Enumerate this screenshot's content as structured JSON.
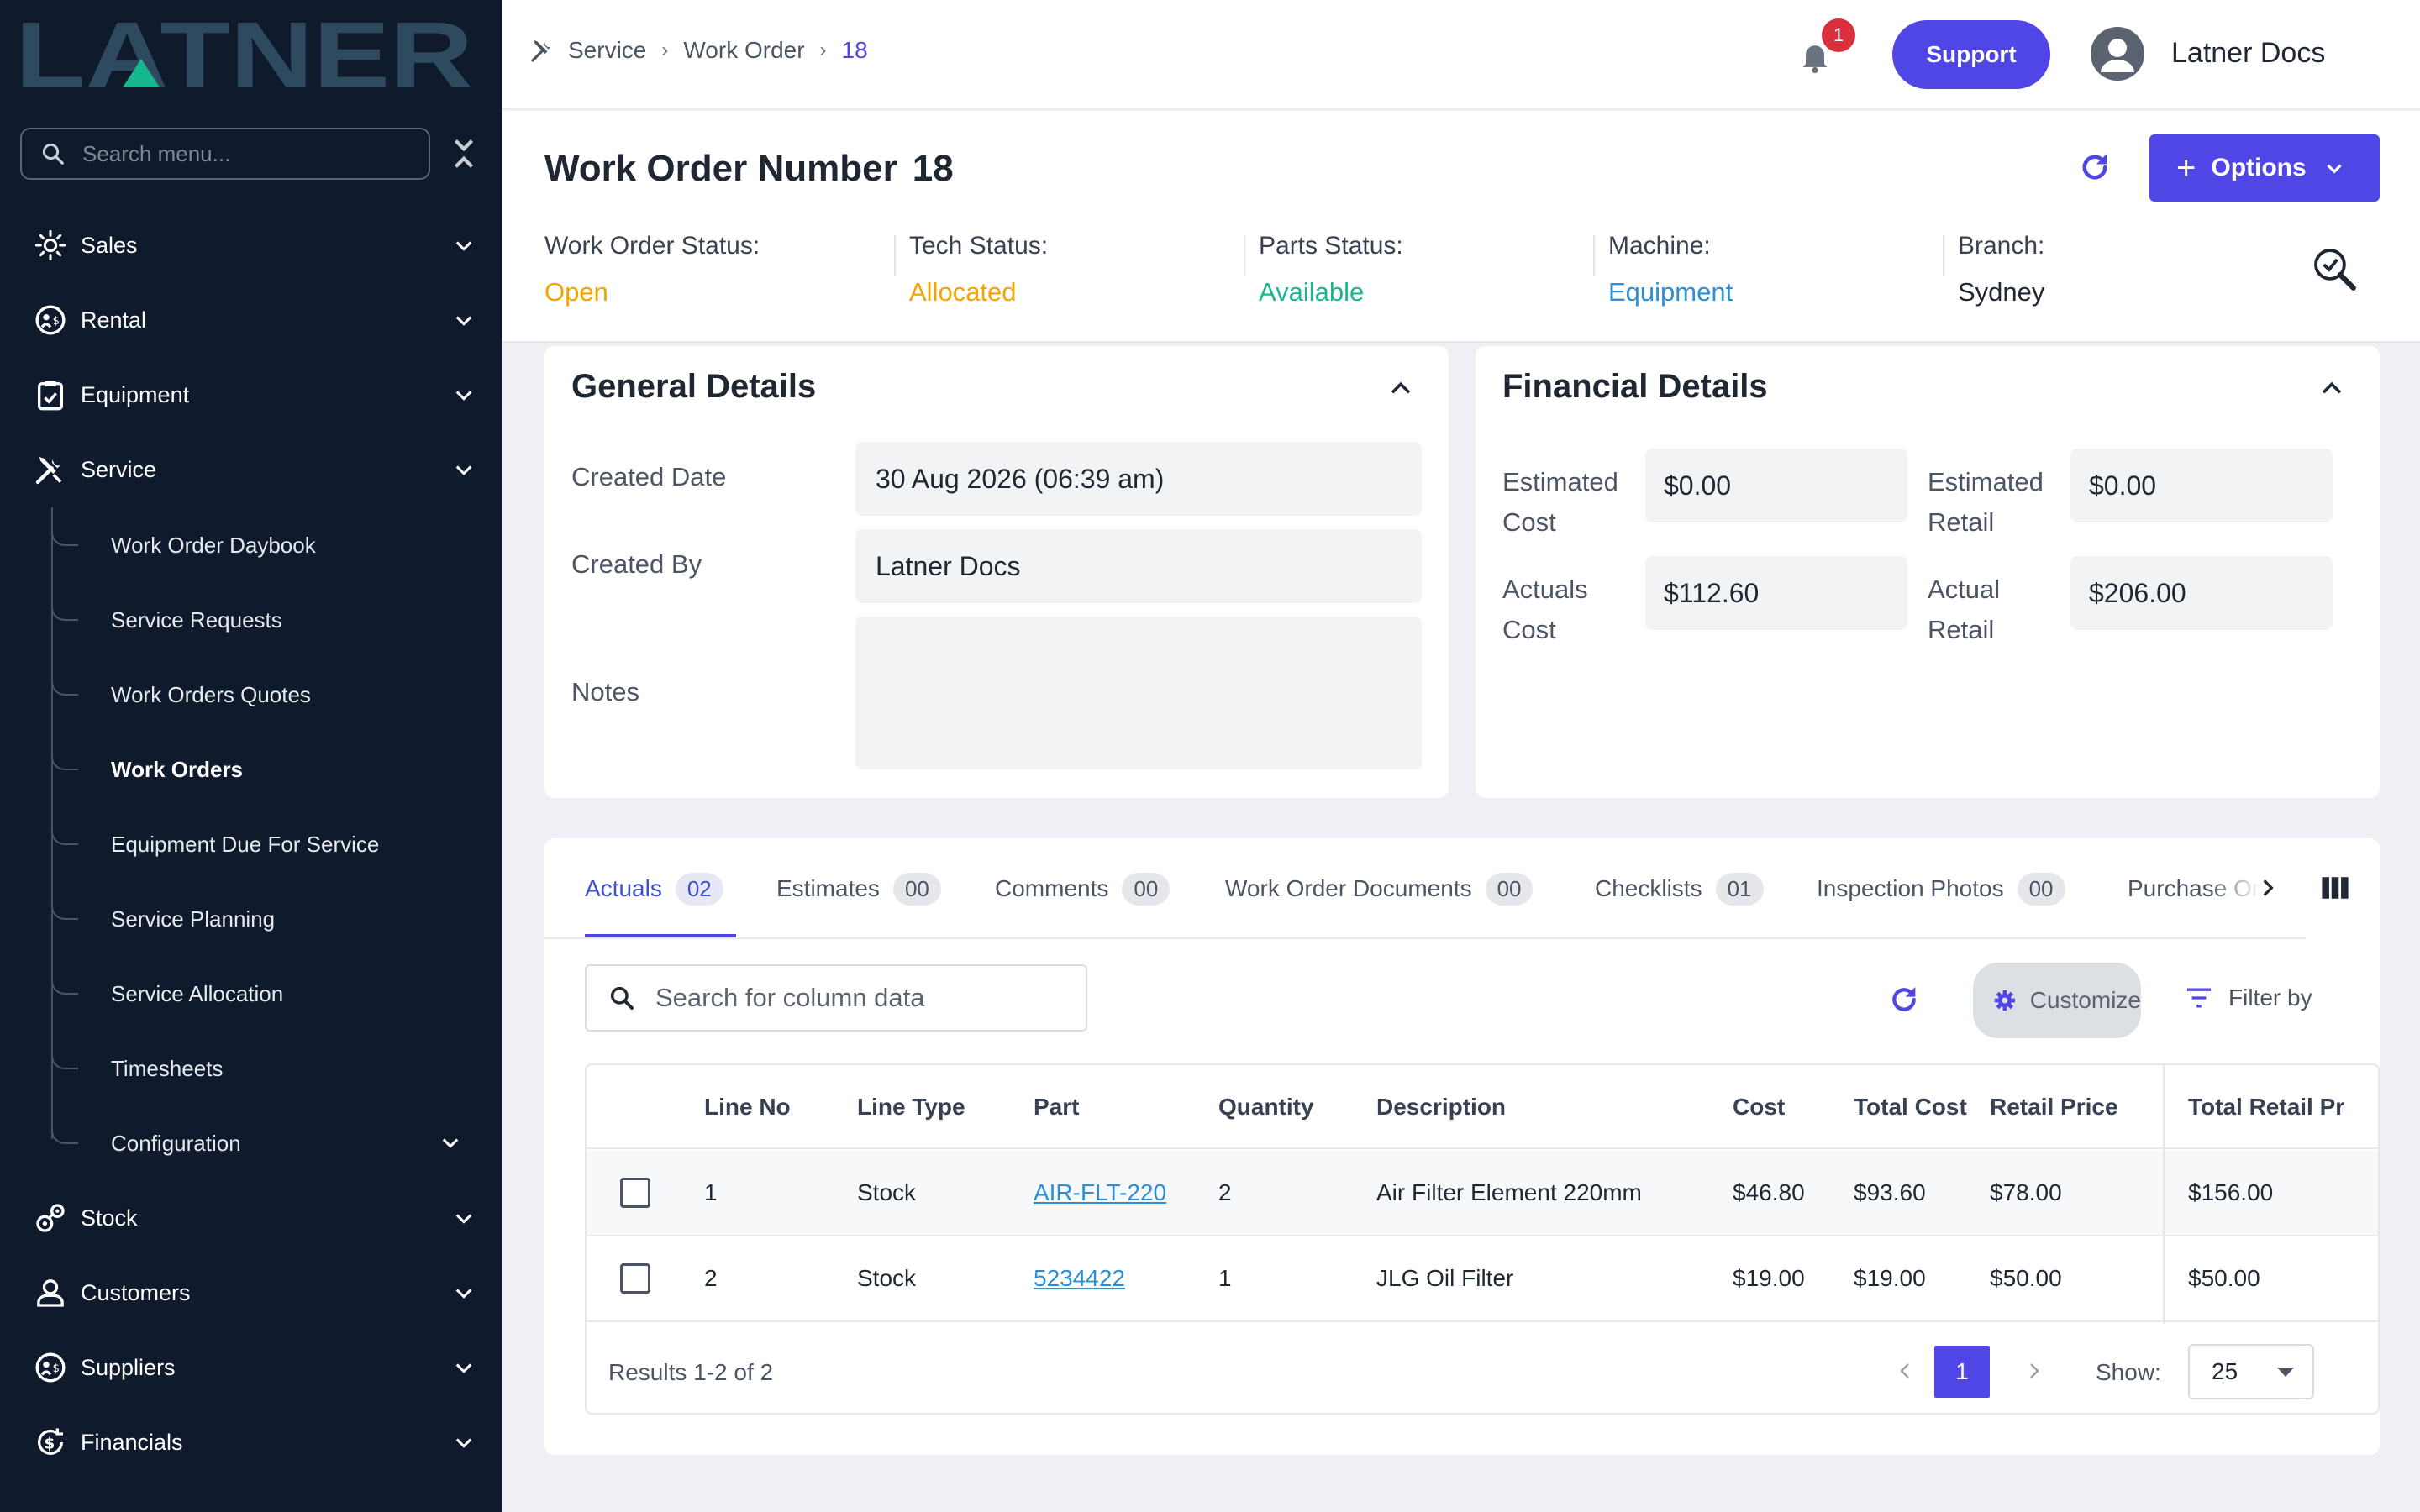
{
  "brand": {
    "logo_text": "LATNER"
  },
  "sidebar": {
    "search_placeholder": "Search menu...",
    "items": [
      {
        "label": "Sales",
        "icon": "sales-icon"
      },
      {
        "label": "Rental",
        "icon": "rental-icon"
      },
      {
        "label": "Equipment",
        "icon": "clipboard-icon"
      },
      {
        "label": "Service",
        "icon": "tools-icon"
      },
      {
        "label": "Stock",
        "icon": "stock-icon"
      },
      {
        "label": "Customers",
        "icon": "user-icon"
      },
      {
        "label": "Suppliers",
        "icon": "suppliers-icon"
      },
      {
        "label": "Financials",
        "icon": "dollar-icon"
      }
    ],
    "service_children": [
      {
        "label": "Work Order Daybook"
      },
      {
        "label": "Service Requests"
      },
      {
        "label": "Work Orders Quotes"
      },
      {
        "label": "Work Orders"
      },
      {
        "label": "Equipment Due For Service"
      },
      {
        "label": "Service Planning"
      },
      {
        "label": "Service Allocation"
      },
      {
        "label": "Timesheets"
      },
      {
        "label": "Configuration"
      }
    ]
  },
  "header": {
    "breadcrumb": [
      "Service",
      "Work Order",
      "18"
    ],
    "notifications_count": "1",
    "support_label": "Support",
    "user_name": "Latner Docs"
  },
  "work_order": {
    "title_label": "Work Order Number",
    "number": "18",
    "options_label": "Options",
    "statuses": [
      {
        "label": "Work Order Status:",
        "value": "Open",
        "color": "#f5a300"
      },
      {
        "label": "Tech Status:",
        "value": "Allocated",
        "color": "#f5a300"
      },
      {
        "label": "Parts Status:",
        "value": "Available",
        "color": "#17b890"
      },
      {
        "label": "Machine:",
        "value": "Equipment",
        "color": "#2a8fd6"
      },
      {
        "label": "Branch:",
        "value": "Sydney",
        "color": "#1f2733"
      }
    ]
  },
  "general_details": {
    "title": "General Details",
    "created_date_label": "Created Date",
    "created_date": "30 Aug 2026 (06:39 am)",
    "created_by_label": "Created By",
    "created_by": "Latner Docs",
    "notes_label": "Notes",
    "notes": ""
  },
  "financial_details": {
    "title": "Financial Details",
    "estimated_cost_label": [
      "Estimated",
      "Cost"
    ],
    "estimated_cost": "$0.00",
    "estimated_retail_label": [
      "Estimated",
      "Retail"
    ],
    "estimated_retail": "$0.00",
    "actuals_cost_label": [
      "Actuals",
      "Cost"
    ],
    "actuals_cost": "$112.60",
    "actual_retail_label": [
      "Actual",
      "Retail"
    ],
    "actual_retail": "$206.00"
  },
  "tabs": [
    {
      "label": "Actuals",
      "count": "02"
    },
    {
      "label": "Estimates",
      "count": "00"
    },
    {
      "label": "Comments",
      "count": "00"
    },
    {
      "label": "Work Order Documents",
      "count": "00"
    },
    {
      "label": "Checklists",
      "count": "01"
    },
    {
      "label": "Inspection Photos",
      "count": "00"
    },
    {
      "label": "Purchase Or"
    }
  ],
  "table": {
    "search_placeholder": "Search for column data",
    "customize_label": "Customize",
    "filter_label": "Filter by",
    "columns": [
      "Line No",
      "Line Type",
      "Part",
      "Quantity",
      "Description",
      "Cost",
      "Total Cost",
      "Retail Price",
      "Total Retail Pr"
    ],
    "rows": [
      {
        "line_no": "1",
        "line_type": "Stock",
        "part": "AIR-FLT-220",
        "quantity": "2",
        "description": "Air Filter Element 220mm",
        "cost": "$46.80",
        "total_cost": "$93.60",
        "retail_price": "$78.00",
        "total_retail": "$156.00"
      },
      {
        "line_no": "2",
        "line_type": "Stock",
        "part": "5234422",
        "quantity": "1",
        "description": "JLG Oil Filter",
        "cost": "$19.00",
        "total_cost": "$19.00",
        "retail_price": "$50.00",
        "total_retail": "$50.00"
      }
    ],
    "results_text": "Results 1-2 of 2",
    "current_page": "1",
    "show_label": "Show:",
    "page_size": "25"
  },
  "colors": {
    "accent": "#4f46e5",
    "sidebar_bg": "#0f1a2c",
    "logo": "#2e4a5e",
    "logo_accent": "#17b890"
  }
}
